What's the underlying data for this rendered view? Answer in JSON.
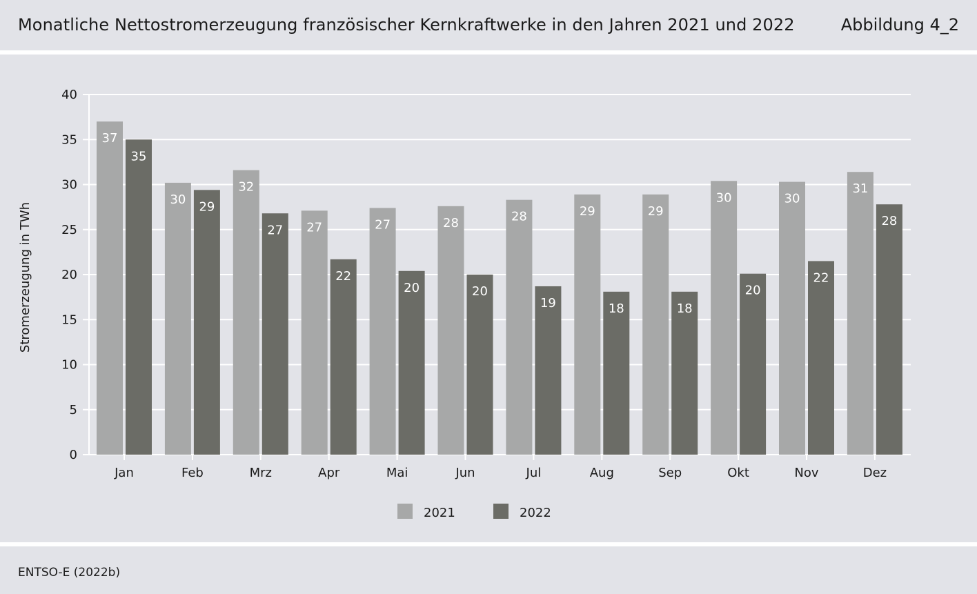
{
  "header": {
    "title": "Monatliche Nettostromerzeugung französischer Kernkraftwerke in den Jahren 2021 und 2022",
    "figure_label": "Abbildung 4_2"
  },
  "footer": {
    "source": "ENTSO-E (2022b)"
  },
  "colors": {
    "s2021": "#a7a8a8",
    "s2022": "#6b6c66",
    "background": "#e2e3e8",
    "grid": "#ffffff"
  },
  "chart_data": {
    "type": "bar",
    "title": "",
    "xlabel": "",
    "ylabel": "Stromerzeugung in TWh",
    "ylim": [
      0,
      40
    ],
    "yticks": [
      0,
      5,
      10,
      15,
      20,
      25,
      30,
      35,
      40
    ],
    "grid": true,
    "legend_position": "bottom-center",
    "categories": [
      "Jan",
      "Feb",
      "Mrz",
      "Apr",
      "Mai",
      "Jun",
      "Jul",
      "Aug",
      "Sep",
      "Okt",
      "Nov",
      "Dez"
    ],
    "series": [
      {
        "name": "2021",
        "values": [
          37.0,
          30.2,
          31.6,
          27.1,
          27.4,
          27.6,
          28.3,
          28.9,
          28.9,
          30.4,
          30.3,
          31.4
        ],
        "labels": [
          "37",
          "30",
          "32",
          "27",
          "27",
          "28",
          "28",
          "29",
          "29",
          "30",
          "30",
          "31"
        ]
      },
      {
        "name": "2022",
        "values": [
          35.0,
          29.4,
          26.8,
          21.7,
          20.4,
          20.0,
          18.7,
          18.1,
          18.1,
          20.1,
          21.5,
          27.8
        ],
        "labels": [
          "35",
          "29",
          "27",
          "22",
          "20",
          "20",
          "19",
          "18",
          "18",
          "20",
          "22",
          "28"
        ]
      }
    ]
  }
}
